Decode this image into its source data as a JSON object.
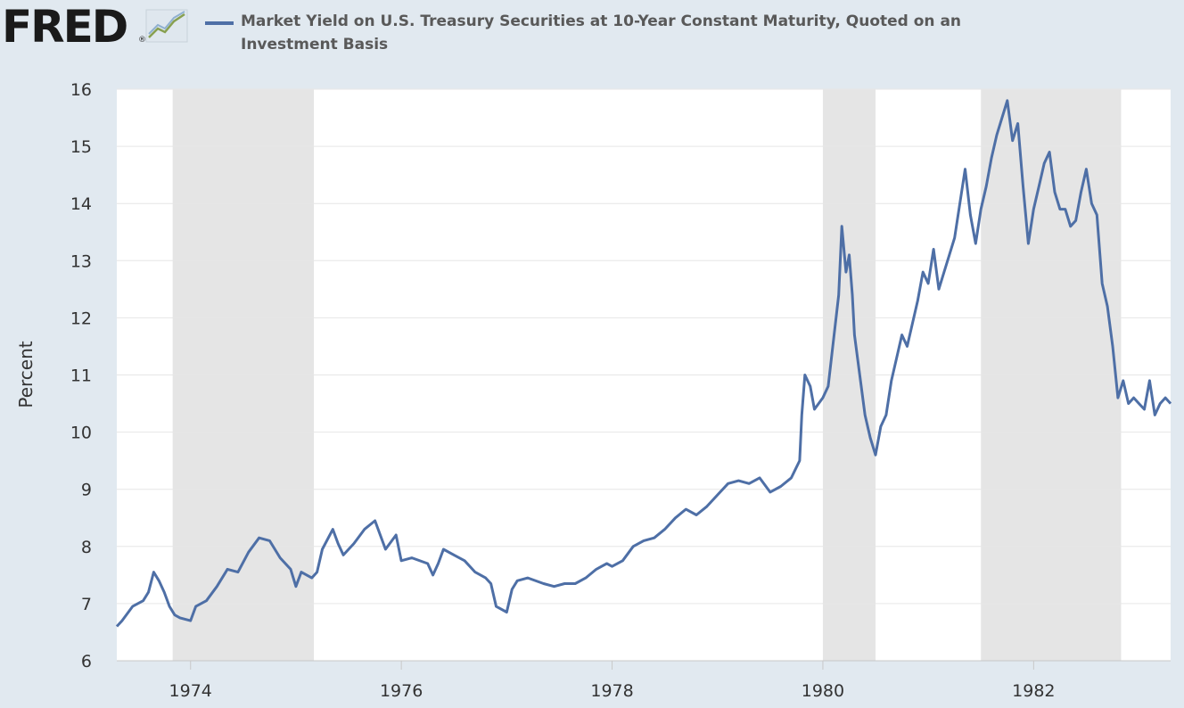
{
  "brand": {
    "logo_text": "FRED",
    "icon": "fred-chart-icon"
  },
  "chart_data": {
    "type": "line",
    "series": [
      {
        "name": "Market Yield on U.S. Treasury Securities at 10-Year Constant Maturity, Quoted on an Investment Basis",
        "color": "#4e6fa6",
        "points": [
          [
            1973.3,
            6.6
          ],
          [
            1973.35,
            6.7
          ],
          [
            1973.45,
            6.95
          ],
          [
            1973.55,
            7.05
          ],
          [
            1973.6,
            7.2
          ],
          [
            1973.65,
            7.55
          ],
          [
            1973.7,
            7.4
          ],
          [
            1973.75,
            7.2
          ],
          [
            1973.8,
            6.95
          ],
          [
            1973.85,
            6.8
          ],
          [
            1973.9,
            6.75
          ],
          [
            1974.0,
            6.7
          ],
          [
            1974.05,
            6.95
          ],
          [
            1974.15,
            7.05
          ],
          [
            1974.25,
            7.3
          ],
          [
            1974.35,
            7.6
          ],
          [
            1974.45,
            7.55
          ],
          [
            1974.55,
            7.9
          ],
          [
            1974.65,
            8.15
          ],
          [
            1974.75,
            8.1
          ],
          [
            1974.85,
            7.8
          ],
          [
            1974.95,
            7.6
          ],
          [
            1975.0,
            7.3
          ],
          [
            1975.05,
            7.55
          ],
          [
            1975.15,
            7.45
          ],
          [
            1975.2,
            7.55
          ],
          [
            1975.25,
            7.95
          ],
          [
            1975.35,
            8.3
          ],
          [
            1975.4,
            8.05
          ],
          [
            1975.45,
            7.85
          ],
          [
            1975.55,
            8.05
          ],
          [
            1975.65,
            8.3
          ],
          [
            1975.75,
            8.45
          ],
          [
            1975.8,
            8.2
          ],
          [
            1975.85,
            7.95
          ],
          [
            1975.95,
            8.2
          ],
          [
            1976.0,
            7.75
          ],
          [
            1976.1,
            7.8
          ],
          [
            1976.25,
            7.7
          ],
          [
            1976.3,
            7.5
          ],
          [
            1976.35,
            7.7
          ],
          [
            1976.4,
            7.95
          ],
          [
            1976.5,
            7.85
          ],
          [
            1976.6,
            7.75
          ],
          [
            1976.7,
            7.55
          ],
          [
            1976.8,
            7.45
          ],
          [
            1976.85,
            7.35
          ],
          [
            1976.9,
            6.95
          ],
          [
            1977.0,
            6.85
          ],
          [
            1977.05,
            7.25
          ],
          [
            1977.1,
            7.4
          ],
          [
            1977.2,
            7.45
          ],
          [
            1977.35,
            7.35
          ],
          [
            1977.45,
            7.3
          ],
          [
            1977.55,
            7.35
          ],
          [
            1977.65,
            7.35
          ],
          [
            1977.75,
            7.45
          ],
          [
            1977.85,
            7.6
          ],
          [
            1977.95,
            7.7
          ],
          [
            1978.0,
            7.65
          ],
          [
            1978.1,
            7.75
          ],
          [
            1978.2,
            8.0
          ],
          [
            1978.3,
            8.1
          ],
          [
            1978.4,
            8.15
          ],
          [
            1978.5,
            8.3
          ],
          [
            1978.6,
            8.5
          ],
          [
            1978.7,
            8.65
          ],
          [
            1978.8,
            8.55
          ],
          [
            1978.9,
            8.7
          ],
          [
            1979.0,
            8.9
          ],
          [
            1979.1,
            9.1
          ],
          [
            1979.2,
            9.15
          ],
          [
            1979.3,
            9.1
          ],
          [
            1979.4,
            9.2
          ],
          [
            1979.5,
            8.95
          ],
          [
            1979.6,
            9.05
          ],
          [
            1979.7,
            9.2
          ],
          [
            1979.78,
            9.5
          ],
          [
            1979.8,
            10.3
          ],
          [
            1979.83,
            11.0
          ],
          [
            1979.88,
            10.8
          ],
          [
            1979.92,
            10.4
          ],
          [
            1980.0,
            10.6
          ],
          [
            1980.05,
            10.8
          ],
          [
            1980.1,
            11.6
          ],
          [
            1980.15,
            12.4
          ],
          [
            1980.18,
            13.6
          ],
          [
            1980.22,
            12.8
          ],
          [
            1980.25,
            13.1
          ],
          [
            1980.28,
            12.4
          ],
          [
            1980.3,
            11.7
          ],
          [
            1980.35,
            11.0
          ],
          [
            1980.4,
            10.3
          ],
          [
            1980.45,
            9.9
          ],
          [
            1980.5,
            9.6
          ],
          [
            1980.55,
            10.1
          ],
          [
            1980.6,
            10.3
          ],
          [
            1980.65,
            10.9
          ],
          [
            1980.7,
            11.3
          ],
          [
            1980.75,
            11.7
          ],
          [
            1980.8,
            11.5
          ],
          [
            1980.85,
            11.9
          ],
          [
            1980.9,
            12.3
          ],
          [
            1980.95,
            12.8
          ],
          [
            1981.0,
            12.6
          ],
          [
            1981.05,
            13.2
          ],
          [
            1981.1,
            12.5
          ],
          [
            1981.15,
            12.8
          ],
          [
            1981.2,
            13.1
          ],
          [
            1981.25,
            13.4
          ],
          [
            1981.3,
            14.0
          ],
          [
            1981.35,
            14.6
          ],
          [
            1981.4,
            13.8
          ],
          [
            1981.45,
            13.3
          ],
          [
            1981.5,
            13.9
          ],
          [
            1981.55,
            14.3
          ],
          [
            1981.6,
            14.8
          ],
          [
            1981.65,
            15.2
          ],
          [
            1981.7,
            15.5
          ],
          [
            1981.75,
            15.8
          ],
          [
            1981.8,
            15.1
          ],
          [
            1981.85,
            15.4
          ],
          [
            1981.9,
            14.3
          ],
          [
            1981.95,
            13.3
          ],
          [
            1982.0,
            13.9
          ],
          [
            1982.05,
            14.3
          ],
          [
            1982.1,
            14.7
          ],
          [
            1982.15,
            14.9
          ],
          [
            1982.2,
            14.2
          ],
          [
            1982.25,
            13.9
          ],
          [
            1982.3,
            13.9
          ],
          [
            1982.35,
            13.6
          ],
          [
            1982.4,
            13.7
          ],
          [
            1982.45,
            14.2
          ],
          [
            1982.5,
            14.6
          ],
          [
            1982.55,
            14.0
          ],
          [
            1982.6,
            13.8
          ],
          [
            1982.65,
            12.6
          ],
          [
            1982.7,
            12.2
          ],
          [
            1982.75,
            11.5
          ],
          [
            1982.8,
            10.6
          ],
          [
            1982.85,
            10.9
          ],
          [
            1982.9,
            10.5
          ],
          [
            1982.95,
            10.6
          ],
          [
            1983.0,
            10.5
          ],
          [
            1983.05,
            10.4
          ],
          [
            1983.1,
            10.9
          ],
          [
            1983.15,
            10.3
          ],
          [
            1983.2,
            10.5
          ],
          [
            1983.25,
            10.6
          ],
          [
            1983.3,
            10.5
          ]
        ]
      }
    ],
    "recessions": [
      [
        1973.83,
        1975.17
      ],
      [
        1980.0,
        1980.5
      ],
      [
        1981.5,
        1982.83
      ]
    ],
    "x_ticks": [
      "1974",
      "1976",
      "1978",
      "1980",
      "1982"
    ],
    "x_tick_values": [
      1974,
      1976,
      1978,
      1980,
      1982
    ],
    "y_ticks": [
      "6",
      "7",
      "8",
      "9",
      "10",
      "11",
      "12",
      "13",
      "14",
      "15",
      "16"
    ],
    "xlim": [
      1973.3,
      1983.3
    ],
    "ylim": [
      6,
      16
    ],
    "ylabel": "Percent",
    "grid": true,
    "legend": "top"
  }
}
